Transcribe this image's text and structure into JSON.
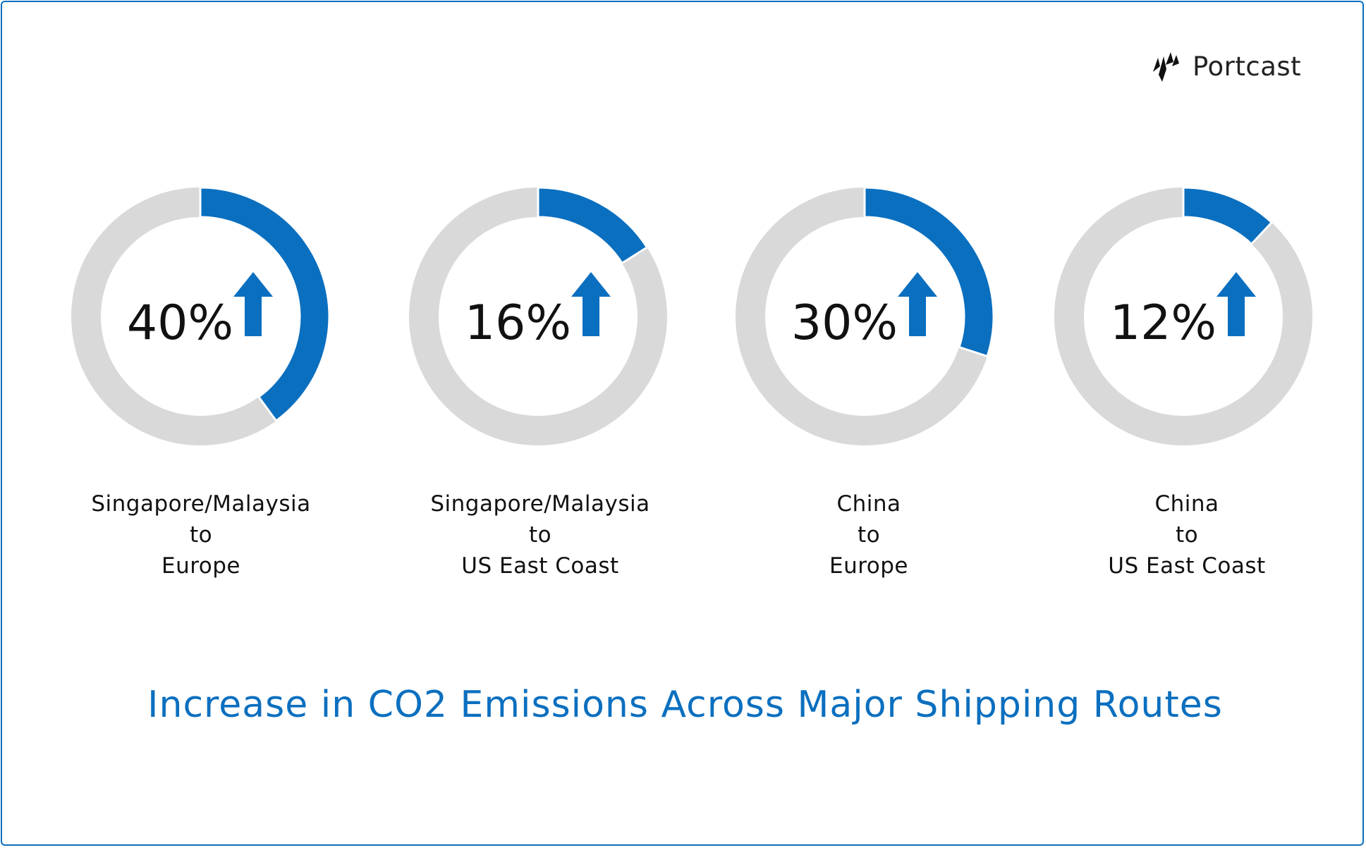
{
  "brand": {
    "name": "Portcast",
    "icon": "portcast-logo-icon"
  },
  "colors": {
    "accent": "#0b6fbf",
    "track": "#d9d9d9",
    "text": "#111111"
  },
  "chart_data": {
    "type": "donut",
    "title": "Increase in CO2 Emissions Across Major Shipping Routes",
    "unit": "%",
    "indicator_icon": "arrow-up-icon",
    "categories": [
      "Singapore/Malaysia to Europe",
      "Singapore/Malaysia to US East Coast",
      "China to Europe",
      "China to US East Coast"
    ],
    "values": [
      40,
      16,
      30,
      12
    ],
    "items": [
      {
        "value": 40,
        "value_label": "40%",
        "route": [
          "Singapore/Malaysia",
          "to",
          "Europe"
        ]
      },
      {
        "value": 16,
        "value_label": "16%",
        "route": [
          "Singapore/Malaysia",
          "to",
          "US East Coast"
        ]
      },
      {
        "value": 30,
        "value_label": "30%",
        "route": [
          "China",
          "to",
          "Europe"
        ]
      },
      {
        "value": 12,
        "value_label": "12%",
        "route": [
          "China",
          "to",
          "US East Coast"
        ]
      }
    ]
  }
}
